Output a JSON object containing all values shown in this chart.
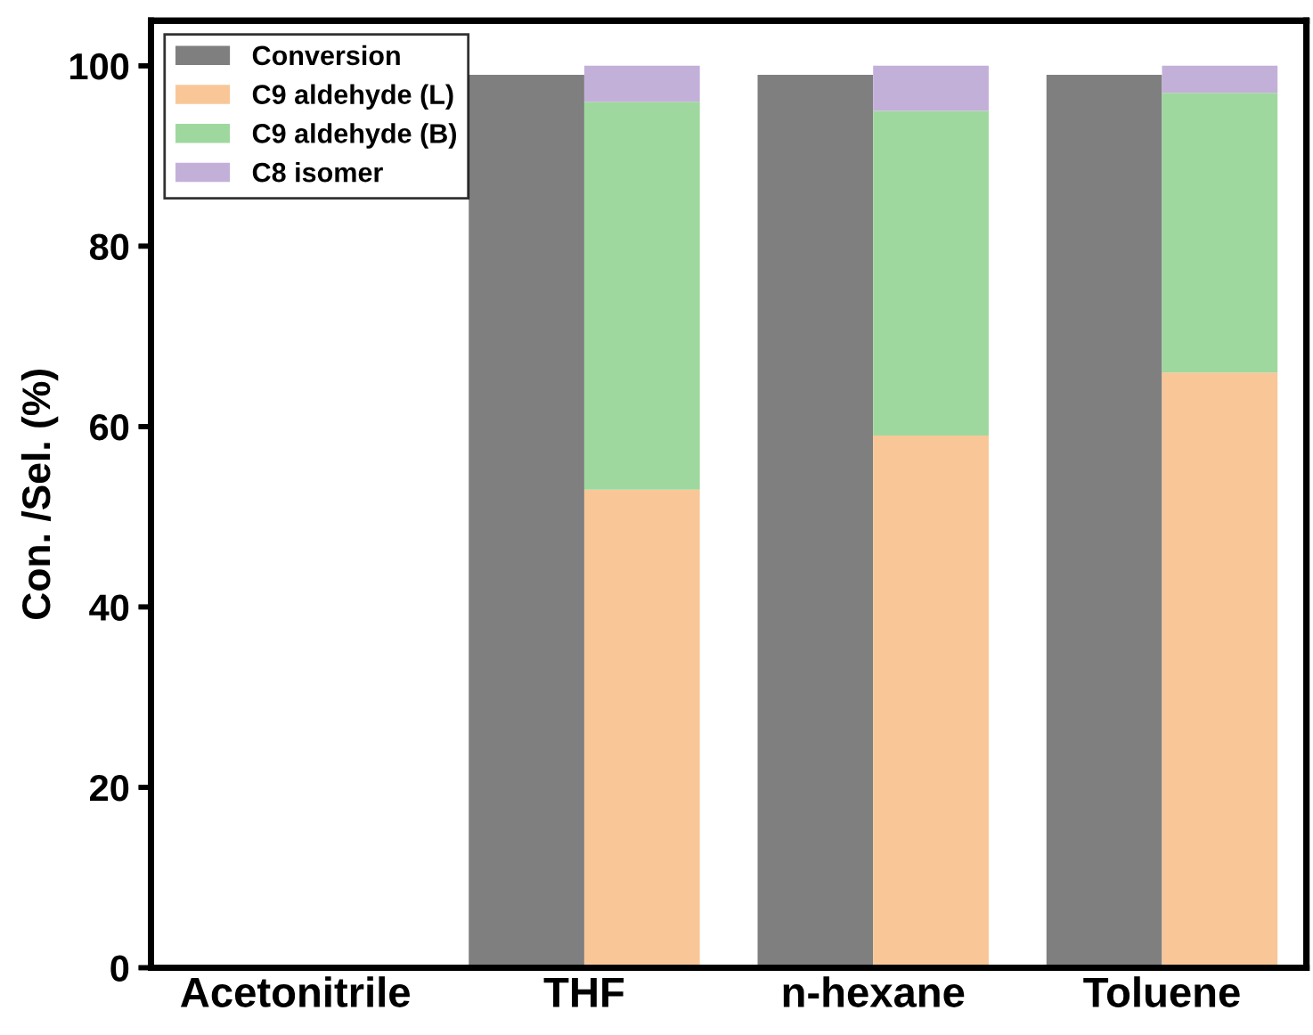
{
  "chart_data": [
    {
      "type": "bar",
      "ylabel": "Con. /Sel. (%)",
      "categories": [
        null,
        null,
        null,
        null
      ],
      "series": [
        {
          "name": "Conversion",
          "color": "#7f7f7f",
          "values": [
            0,
            99,
            99,
            99
          ]
        }
      ],
      "ylim": [
        0,
        105
      ],
      "yticks": [
        0,
        20,
        40,
        60,
        80,
        100
      ],
      "tick_labels": "y",
      "legend": "upper left"
    },
    {
      "type": "bar",
      "stacked": true,
      "categories": [
        "Acetonitrile",
        "THF",
        "n-hexane",
        "Toluene"
      ],
      "series": [
        {
          "name": "C9 aldehyde (L)",
          "color": "#f9c797",
          "values": [
            0,
            53,
            59,
            66
          ]
        },
        {
          "name": "C9 aldehyde (B)",
          "color": "#9fd89f",
          "values": [
            0,
            43,
            36,
            31
          ]
        },
        {
          "name": "C8 isomer",
          "color": "#c3b0d9",
          "values": [
            0,
            4,
            5,
            3
          ]
        }
      ],
      "ylim": [
        0,
        105
      ],
      "yticks": [
        0,
        20,
        40,
        60,
        80,
        100
      ],
      "tick_labels": "x",
      "legend": "upper left"
    }
  ]
}
